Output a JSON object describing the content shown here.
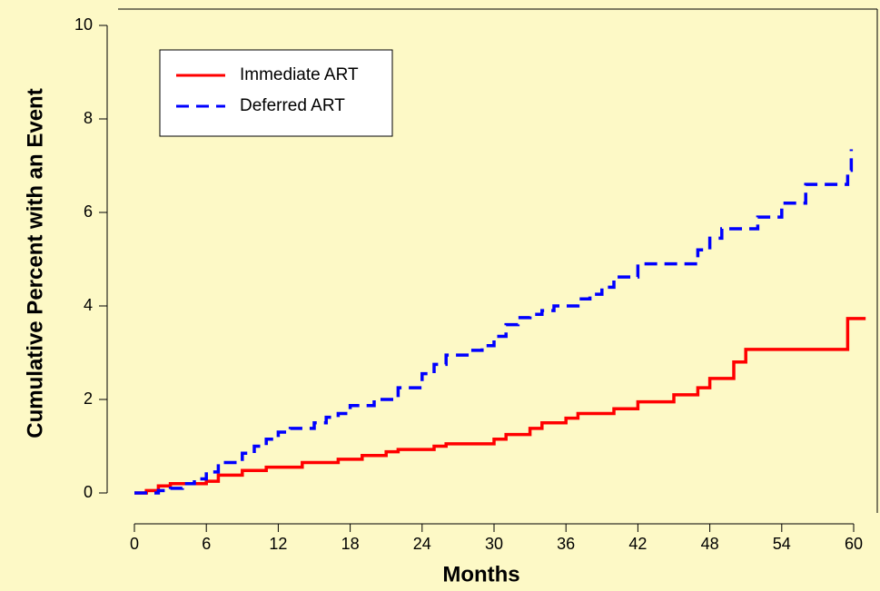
{
  "chart_data": {
    "type": "step",
    "xlabel": "Months",
    "ylabel": "Cumulative Percent with an Event",
    "xlim": [
      0,
      61
    ],
    "ylim": [
      0,
      10
    ],
    "xticks": [
      0,
      6,
      12,
      18,
      24,
      30,
      36,
      42,
      48,
      54,
      60
    ],
    "yticks": [
      0,
      2,
      4,
      6,
      8,
      10
    ],
    "legend": "top-left",
    "series": [
      {
        "name": "Immediate ART",
        "color": "#ff0000",
        "dash": "solid",
        "x": [
          0,
          1,
          2,
          3,
          6,
          7,
          9,
          11,
          14,
          17,
          19,
          21,
          22,
          25,
          26,
          30,
          31,
          33,
          34,
          36,
          37,
          40,
          42,
          45,
          47,
          48,
          50,
          51,
          59.5,
          61
        ],
        "values": [
          0,
          0.05,
          0.15,
          0.2,
          0.25,
          0.38,
          0.48,
          0.55,
          0.65,
          0.72,
          0.8,
          0.88,
          0.93,
          1.0,
          1.05,
          1.15,
          1.25,
          1.38,
          1.5,
          1.6,
          1.7,
          1.8,
          1.95,
          2.1,
          2.25,
          2.45,
          2.8,
          3.07,
          3.73,
          3.73
        ]
      },
      {
        "name": "Deferred ART",
        "color": "#0000ff",
        "dash": "dashed",
        "x": [
          0,
          2,
          3,
          4,
          5,
          6,
          7,
          9,
          10,
          11,
          12,
          13,
          15,
          16,
          17,
          18,
          20,
          22,
          24,
          25,
          26,
          28,
          29,
          30,
          31,
          32,
          33,
          34,
          35,
          37,
          38,
          39,
          40,
          42,
          47,
          48,
          49,
          52,
          54,
          56,
          59.5,
          59.8
        ],
        "values": [
          0,
          0.05,
          0.1,
          0.2,
          0.3,
          0.45,
          0.65,
          0.85,
          1.0,
          1.15,
          1.3,
          1.38,
          1.5,
          1.62,
          1.7,
          1.87,
          2.0,
          2.25,
          2.55,
          2.75,
          2.95,
          3.05,
          3.15,
          3.35,
          3.6,
          3.75,
          3.82,
          3.9,
          4.0,
          4.15,
          4.25,
          4.4,
          4.62,
          4.9,
          5.2,
          5.45,
          5.65,
          5.9,
          6.2,
          6.6,
          6.9,
          7.35
        ]
      }
    ]
  }
}
